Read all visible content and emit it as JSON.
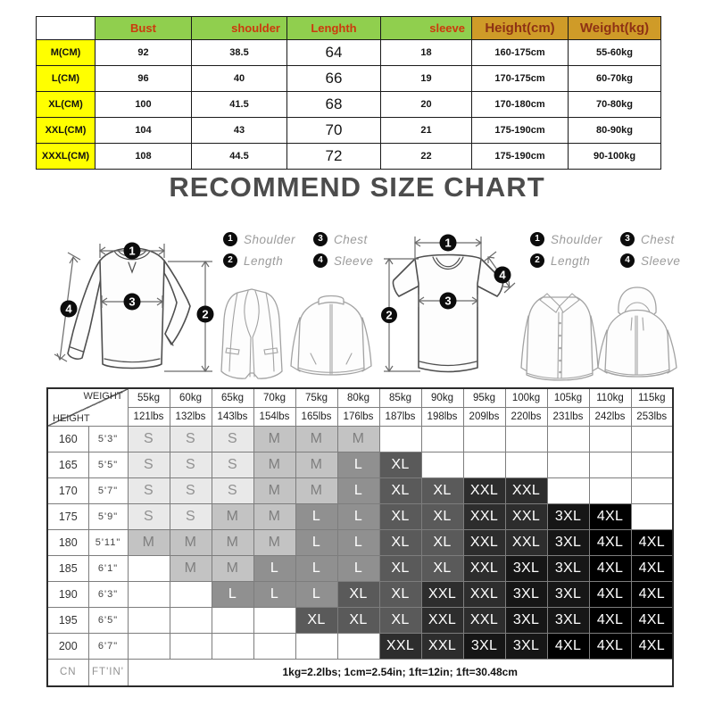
{
  "title": "RECOMMEND SIZE CHART",
  "top_table": {
    "headers": [
      "",
      "Bust",
      "shoulder",
      "Lenghth",
      "sleeve",
      "Height(cm)",
      "Weight(kg)"
    ],
    "rows": [
      [
        "M(CM)",
        "92",
        "38.5",
        "64",
        "18",
        "160-175cm",
        "55-60kg"
      ],
      [
        "L(CM)",
        "96",
        "40",
        "66",
        "19",
        "170-175cm",
        "60-70kg"
      ],
      [
        "XL(CM)",
        "100",
        "41.5",
        "68",
        "20",
        "170-180cm",
        "70-80kg"
      ],
      [
        "XXL(CM)",
        "104",
        "43",
        "70",
        "21",
        "175-190cm",
        "80-90kg"
      ],
      [
        "XXXL(CM)",
        "108",
        "44.5",
        "72",
        "22",
        "175-190cm",
        "90-100kg"
      ]
    ]
  },
  "legend": [
    {
      "num": "1",
      "label": "Shoulder"
    },
    {
      "num": "3",
      "label": "Chest"
    },
    {
      "num": "2",
      "label": "Length"
    },
    {
      "num": "4",
      "label": "Sleeve"
    }
  ],
  "badges": [
    "1",
    "2",
    "3",
    "4"
  ],
  "size_matrix": {
    "corner_top": "WEIGHT",
    "corner_bottom": "HEIGHT",
    "weight_kg": [
      "55kg",
      "60kg",
      "65kg",
      "70kg",
      "75kg",
      "80kg",
      "85kg",
      "90kg",
      "95kg",
      "100kg",
      "105kg",
      "110kg",
      "115kg"
    ],
    "weight_lbs": [
      "121lbs",
      "132lbs",
      "143lbs",
      "154lbs",
      "165lbs",
      "176lbs",
      "187lbs",
      "198lbs",
      "209lbs",
      "220lbs",
      "231lbs",
      "242lbs",
      "253lbs"
    ],
    "rows": [
      {
        "cm": "160",
        "ft": "5'3\"",
        "sizes": [
          "S",
          "S",
          "S",
          "M",
          "M",
          "M",
          "",
          "",
          "",
          "",
          "",
          "",
          ""
        ]
      },
      {
        "cm": "165",
        "ft": "5'5\"",
        "sizes": [
          "S",
          "S",
          "S",
          "M",
          "M",
          "L",
          "XL",
          "",
          "",
          "",
          "",
          "",
          ""
        ]
      },
      {
        "cm": "170",
        "ft": "5'7\"",
        "sizes": [
          "S",
          "S",
          "S",
          "M",
          "M",
          "L",
          "XL",
          "XL",
          "XXL",
          "XXL",
          "",
          "",
          ""
        ]
      },
      {
        "cm": "175",
        "ft": "5'9\"",
        "sizes": [
          "S",
          "S",
          "M",
          "M",
          "L",
          "L",
          "XL",
          "XL",
          "XXL",
          "XXL",
          "3XL",
          "4XL",
          ""
        ]
      },
      {
        "cm": "180",
        "ft": "5'11\"",
        "sizes": [
          "M",
          "M",
          "M",
          "M",
          "L",
          "L",
          "XL",
          "XL",
          "XXL",
          "XXL",
          "3XL",
          "4XL",
          "4XL"
        ]
      },
      {
        "cm": "185",
        "ft": "6'1\"",
        "sizes": [
          "",
          "M",
          "M",
          "L",
          "L",
          "L",
          "XL",
          "XL",
          "XXL",
          "3XL",
          "3XL",
          "4XL",
          "4XL"
        ]
      },
      {
        "cm": "190",
        "ft": "6'3\"",
        "sizes": [
          "",
          "",
          "L",
          "L",
          "L",
          "XL",
          "XL",
          "XXL",
          "XXL",
          "3XL",
          "3XL",
          "4XL",
          "4XL"
        ]
      },
      {
        "cm": "195",
        "ft": "6'5\"",
        "sizes": [
          "",
          "",
          "",
          "",
          "XL",
          "XL",
          "XL",
          "XXL",
          "XXL",
          "3XL",
          "3XL",
          "4XL",
          "4XL"
        ]
      },
      {
        "cm": "200",
        "ft": "6'7\"",
        "sizes": [
          "",
          "",
          "",
          "",
          "",
          "",
          "XXL",
          "XXL",
          "3XL",
          "3XL",
          "4XL",
          "4XL",
          "4XL"
        ]
      }
    ],
    "footer": {
      "cn": "CN",
      "ftin": "FT'IN'",
      "note": "1kg=2.2lbs; 1cm=2.54in; 1ft=12in; 1ft=30.48cm"
    }
  },
  "size_colors": {
    "S": {
      "bg": "#e9e9e9",
      "fg": "#909090"
    },
    "M": {
      "bg": "#c3c3c3",
      "fg": "#7f7f7f"
    },
    "L": {
      "bg": "#909090",
      "fg": "#ffffff"
    },
    "XL": {
      "bg": "#5a5a5a",
      "fg": "#ffffff"
    },
    "XXL": {
      "bg": "#2d2d2d",
      "fg": "#ffffff"
    },
    "3XL": {
      "bg": "#161616",
      "fg": "#ffffff"
    },
    "4XL": {
      "bg": "#000000",
      "fg": "#ffffff"
    }
  },
  "theme": {
    "header_green": "#90cf4e",
    "header_orange": "#cf9b28",
    "size_yellow": "#ffff00",
    "header_red_text": "#cc3a0e",
    "header_dark_red_text": "#8e3214",
    "title_color": "#4c4c4c"
  }
}
